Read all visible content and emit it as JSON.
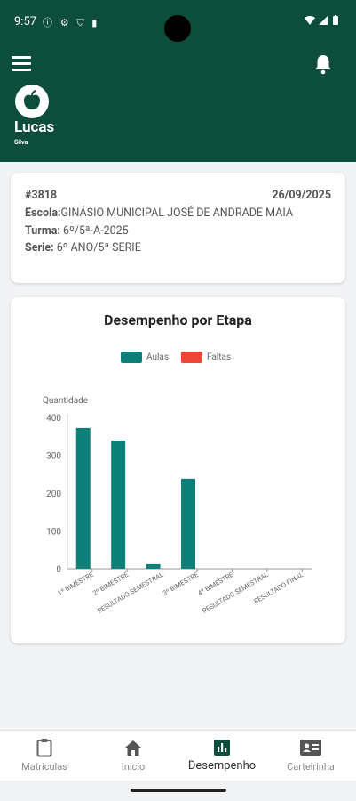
{
  "status_bar": {
    "time": "9:57",
    "notif_icons": "ⓘ ⚙ ⛉ ▮"
  },
  "user": {
    "name": "Lucas",
    "surname": "Silva"
  },
  "enrollment": {
    "id": "#3818",
    "date": "26/09/2025",
    "school_label": "Escola:",
    "school": "GINÁSIO MUNICIPAL JOSÉ DE ANDRADE MAIA",
    "class_label": "Turma:",
    "class": "6º/5ª-A-2025",
    "grade_label": "Serie:",
    "grade": "6º ANO/5ª SERIE"
  },
  "colors": {
    "header": "#0d4d3c",
    "aulas": "#0e807a",
    "faltas": "#ef4438"
  },
  "chart_data": {
    "type": "bar",
    "title": "Desempenho por Etapa",
    "ylabel": "Quantidade",
    "xlabel": "",
    "ylim": [
      0,
      400
    ],
    "yticks": [
      0,
      100,
      200,
      300,
      400
    ],
    "categories": [
      "1º BIMESTRE",
      "2º BIMESTRE",
      "RESULTADO SEMESTRAL",
      "3º BIMESTRE",
      "4º BIMESTRE",
      "RESULTADO SEMESTRAL",
      "RESULTADO FINAL"
    ],
    "series": [
      {
        "name": "Aulas",
        "values": [
          372,
          339,
          12,
          238,
          0,
          0,
          0
        ]
      },
      {
        "name": "Faltas",
        "values": [
          0,
          0,
          0,
          0,
          0,
          0,
          0
        ]
      }
    ],
    "legend_position": "top"
  },
  "nav": {
    "items": [
      {
        "label": "Matriculas",
        "icon": "clipboard-icon"
      },
      {
        "label": "Início",
        "icon": "home-icon"
      },
      {
        "label": "Desempenho",
        "icon": "bar-chart-icon"
      },
      {
        "label": "Carteirinha",
        "icon": "id-card-icon"
      }
    ],
    "active": "Desempenho"
  }
}
